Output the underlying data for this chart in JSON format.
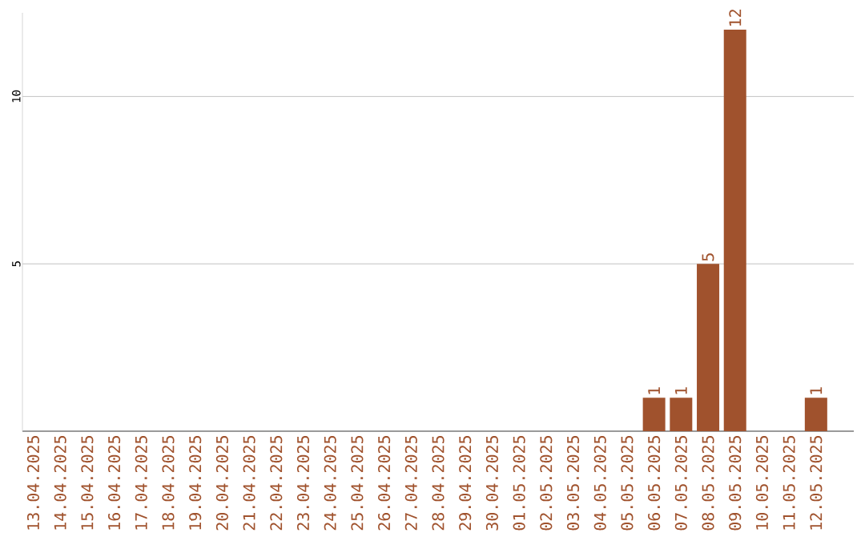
{
  "chart_data": {
    "type": "bar",
    "categories": [
      "13.04.2025",
      "14.04.2025",
      "15.04.2025",
      "16.04.2025",
      "17.04.2025",
      "18.04.2025",
      "19.04.2025",
      "20.04.2025",
      "21.04.2025",
      "22.04.2025",
      "23.04.2025",
      "24.04.2025",
      "25.04.2025",
      "26.04.2025",
      "27.04.2025",
      "28.04.2025",
      "29.04.2025",
      "30.04.2025",
      "01.05.2025",
      "02.05.2025",
      "03.05.2025",
      "04.05.2025",
      "05.05.2025",
      "06.05.2025",
      "07.05.2025",
      "08.05.2025",
      "09.05.2025",
      "10.05.2025",
      "11.05.2025",
      "12.05.2025"
    ],
    "values": [
      0,
      0,
      0,
      0,
      0,
      0,
      0,
      0,
      0,
      0,
      0,
      0,
      0,
      0,
      0,
      0,
      0,
      0,
      0,
      0,
      0,
      0,
      0,
      1,
      1,
      5,
      12,
      0,
      0,
      1
    ],
    "value_labels": [
      null,
      null,
      null,
      null,
      null,
      null,
      null,
      null,
      null,
      null,
      null,
      null,
      null,
      null,
      null,
      null,
      null,
      null,
      null,
      null,
      null,
      null,
      null,
      "1",
      "1",
      "5",
      "12",
      null,
      null,
      "1"
    ],
    "color": "#a0522d",
    "ylim": [
      0,
      12.5
    ],
    "yticks": [
      5,
      10
    ],
    "grid": "y"
  }
}
